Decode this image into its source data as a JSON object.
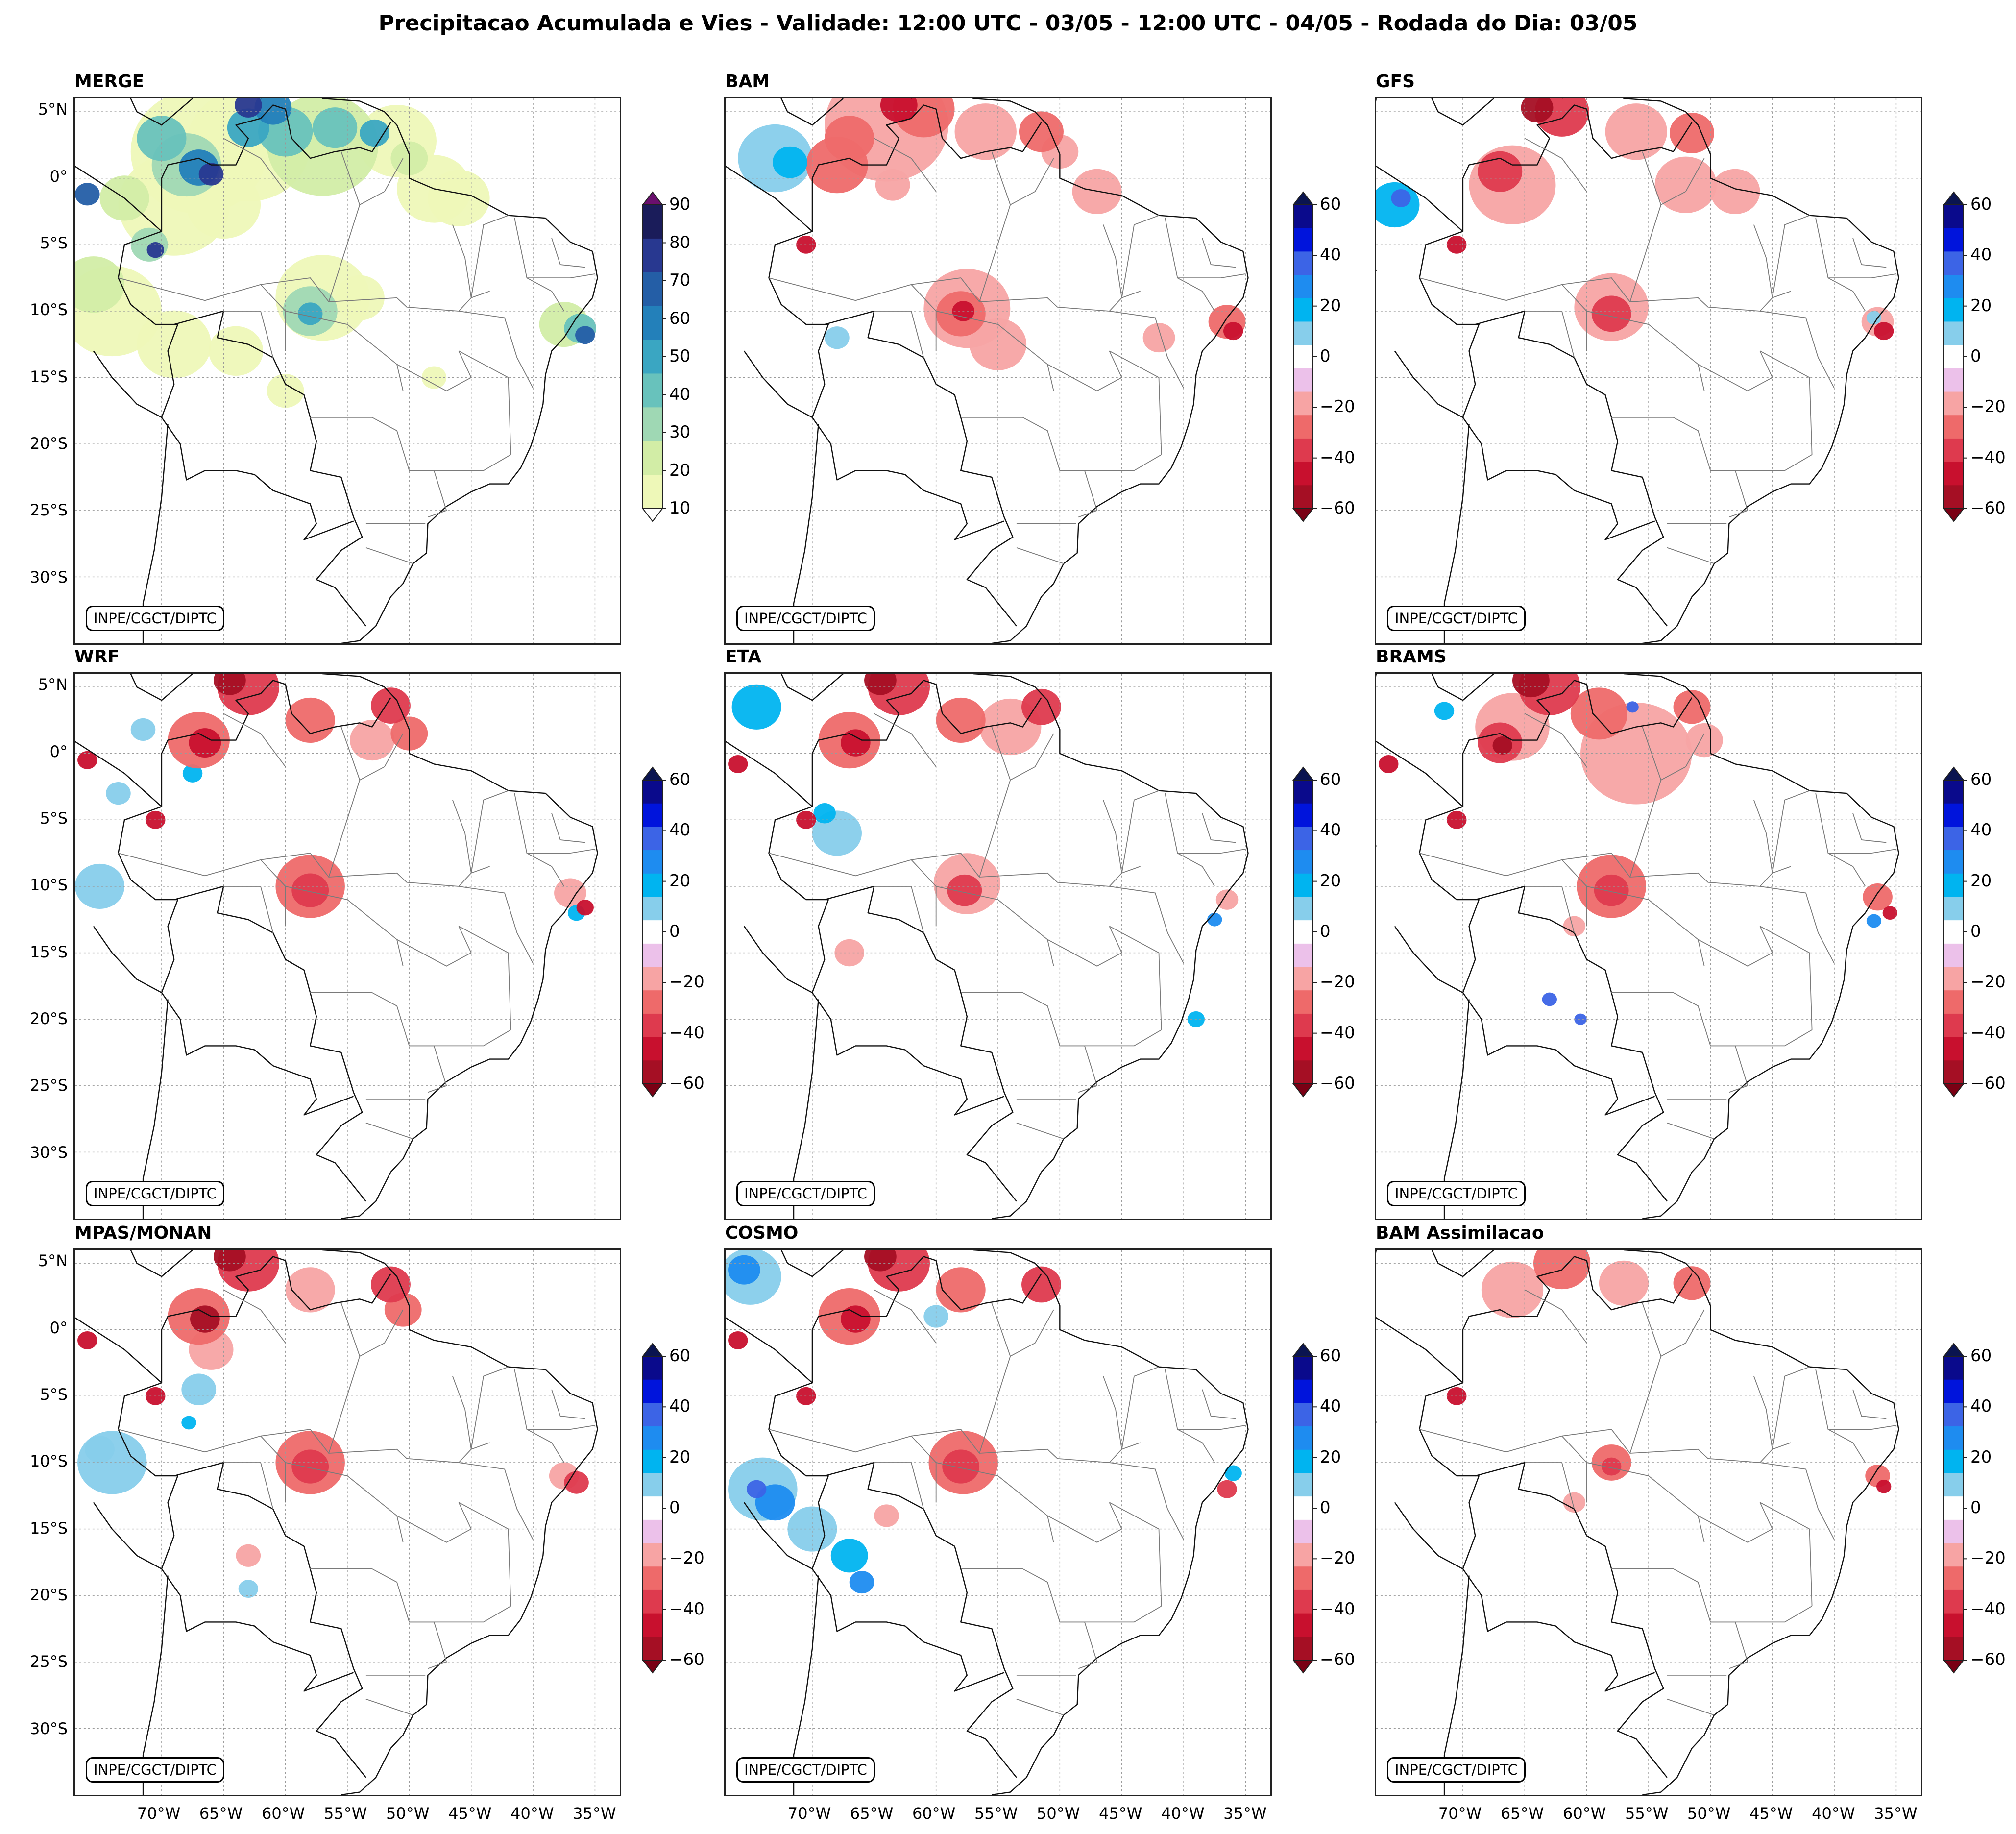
{
  "figure": {
    "title": "Precipitacao Acumulada e Vies - Validade: 12:00 UTC - 03/05 - 12:00 UTC - 04/05 - Rodada do Dia: 03/05",
    "credit": "INPE/CGCT/DIPTC"
  },
  "panels": [
    {
      "id": "merge",
      "title": "MERGE",
      "kind": "precip"
    },
    {
      "id": "bam",
      "title": "BAM",
      "kind": "bias"
    },
    {
      "id": "gfs",
      "title": "GFS",
      "kind": "bias"
    },
    {
      "id": "wrf",
      "title": "WRF",
      "kind": "bias"
    },
    {
      "id": "eta",
      "title": "ETA",
      "kind": "bias"
    },
    {
      "id": "brams",
      "title": "BRAMS",
      "kind": "bias"
    },
    {
      "id": "mpas",
      "title": "MPAS/MONAN",
      "kind": "bias"
    },
    {
      "id": "cosmo",
      "title": "COSMO",
      "kind": "bias"
    },
    {
      "id": "bamassim",
      "title": "BAM Assimilacao",
      "kind": "bias"
    }
  ],
  "axes": {
    "lat_labels": [
      "5°N",
      "0°",
      "5°S",
      "10°S",
      "15°S",
      "20°S",
      "25°S",
      "30°S"
    ],
    "lon_labels": [
      "70°W",
      "65°W",
      "60°W",
      "55°W",
      "50°W",
      "45°W",
      "40°W",
      "35°W"
    ]
  },
  "colorbars": {
    "precip": {
      "ticks": [
        "10",
        "20",
        "30",
        "40",
        "50",
        "60",
        "70",
        "80",
        "90"
      ],
      "levels": [
        10,
        20,
        30,
        40,
        50,
        60,
        70,
        80,
        90
      ],
      "colors": [
        "#eef8b8",
        "#d2eda6",
        "#9fd8b4",
        "#68c2bc",
        "#3aa6c2",
        "#2380ba",
        "#245ea6",
        "#283890",
        "#1a1c5a"
      ],
      "under": "#ffffff",
      "over": "#6a0f6e"
    },
    "bias": {
      "ticks": [
        "60",
        "40",
        "20",
        "0",
        "−20",
        "−40",
        "−60"
      ],
      "levels": [
        -60,
        -50,
        -40,
        -30,
        -20,
        -10,
        10,
        20,
        30,
        40,
        50,
        60
      ],
      "colors": [
        "#a50f24",
        "#c8102e",
        "#de3a4e",
        "#ee6a6a",
        "#f7a4a4",
        "#ecc1ea",
        "#ffffff",
        "#87ceeb",
        "#00b4f0",
        "#1e8cf0",
        "#3c64e6",
        "#0014dc",
        "#0a0a8c"
      ],
      "under": "#7a0014",
      "over": "#0a1450"
    }
  }
}
